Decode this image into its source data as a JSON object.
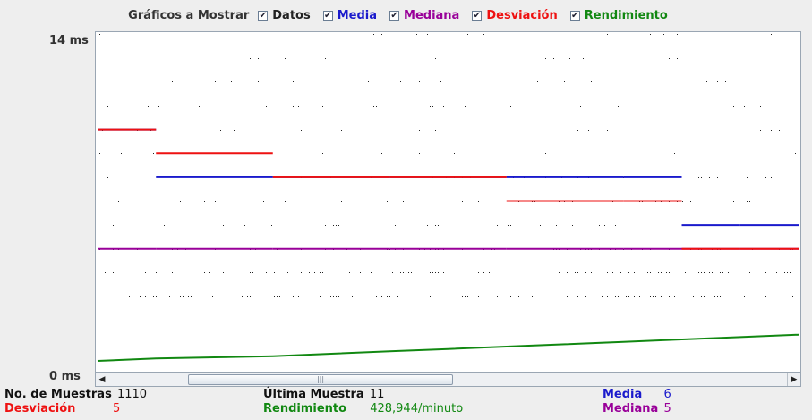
{
  "legend": {
    "title": "Gráficos a Mostrar",
    "items": [
      {
        "key": "datos",
        "label": "Datos",
        "color": "#222222",
        "checked": true
      },
      {
        "key": "media",
        "label": "Media",
        "color": "#1a1acc",
        "checked": true
      },
      {
        "key": "mediana",
        "label": "Mediana",
        "color": "#990099",
        "checked": true
      },
      {
        "key": "desviacion",
        "label": "Desviación",
        "color": "#ee1111",
        "checked": true
      },
      {
        "key": "rendimiento",
        "label": "Rendimiento",
        "color": "#118811",
        "checked": true
      }
    ]
  },
  "axis": {
    "y_max_label": "14 ms",
    "y_min_label": "0 ms"
  },
  "stats": {
    "samples_label": "No. de Muestras",
    "samples_value": "1110",
    "last_label": "Última Muestra",
    "last_value": "11",
    "mean_label": "Media",
    "mean_value": "6",
    "dev_label": "Desviación",
    "dev_value": "5",
    "throughput_label": "Rendimiento",
    "throughput_value": "428,944/minuto",
    "median_label": "Mediana",
    "median_value": "5"
  },
  "colors": {
    "datos": "#222222",
    "media": "#1a1acc",
    "mediana": "#990099",
    "desviacion": "#ee1111",
    "rendimiento": "#118811"
  },
  "scroll": {
    "position_fraction": 0.13,
    "visible_fraction": 0.38
  },
  "chart_data": {
    "type": "scatter",
    "y_unit": "ms",
    "ylim": [
      0,
      14
    ],
    "sample_count": 1110,
    "data_levels_ms": [
      14,
      13,
      12,
      11,
      10,
      9,
      8,
      7,
      6,
      5,
      4,
      3,
      2
    ],
    "series": [
      {
        "name": "Media",
        "values": [
          10,
          8,
          8,
          8,
          8,
          8,
          8,
          8,
          8,
          8,
          6,
          6,
          6
        ]
      },
      {
        "name": "Mediana",
        "values": [
          5,
          5,
          5,
          5,
          5,
          5,
          5,
          5,
          5,
          5,
          5,
          5,
          5
        ]
      },
      {
        "name": "Desviación",
        "values": [
          10,
          9,
          9,
          8,
          8,
          8,
          8,
          7,
          7,
          7,
          5,
          5,
          5
        ]
      },
      {
        "name": "Rendimiento",
        "values": [
          0.3,
          0.4,
          0.45,
          0.5,
          0.6,
          0.7,
          0.8,
          0.9,
          1.0,
          1.1,
          1.2,
          1.3,
          1.4
        ]
      }
    ]
  }
}
